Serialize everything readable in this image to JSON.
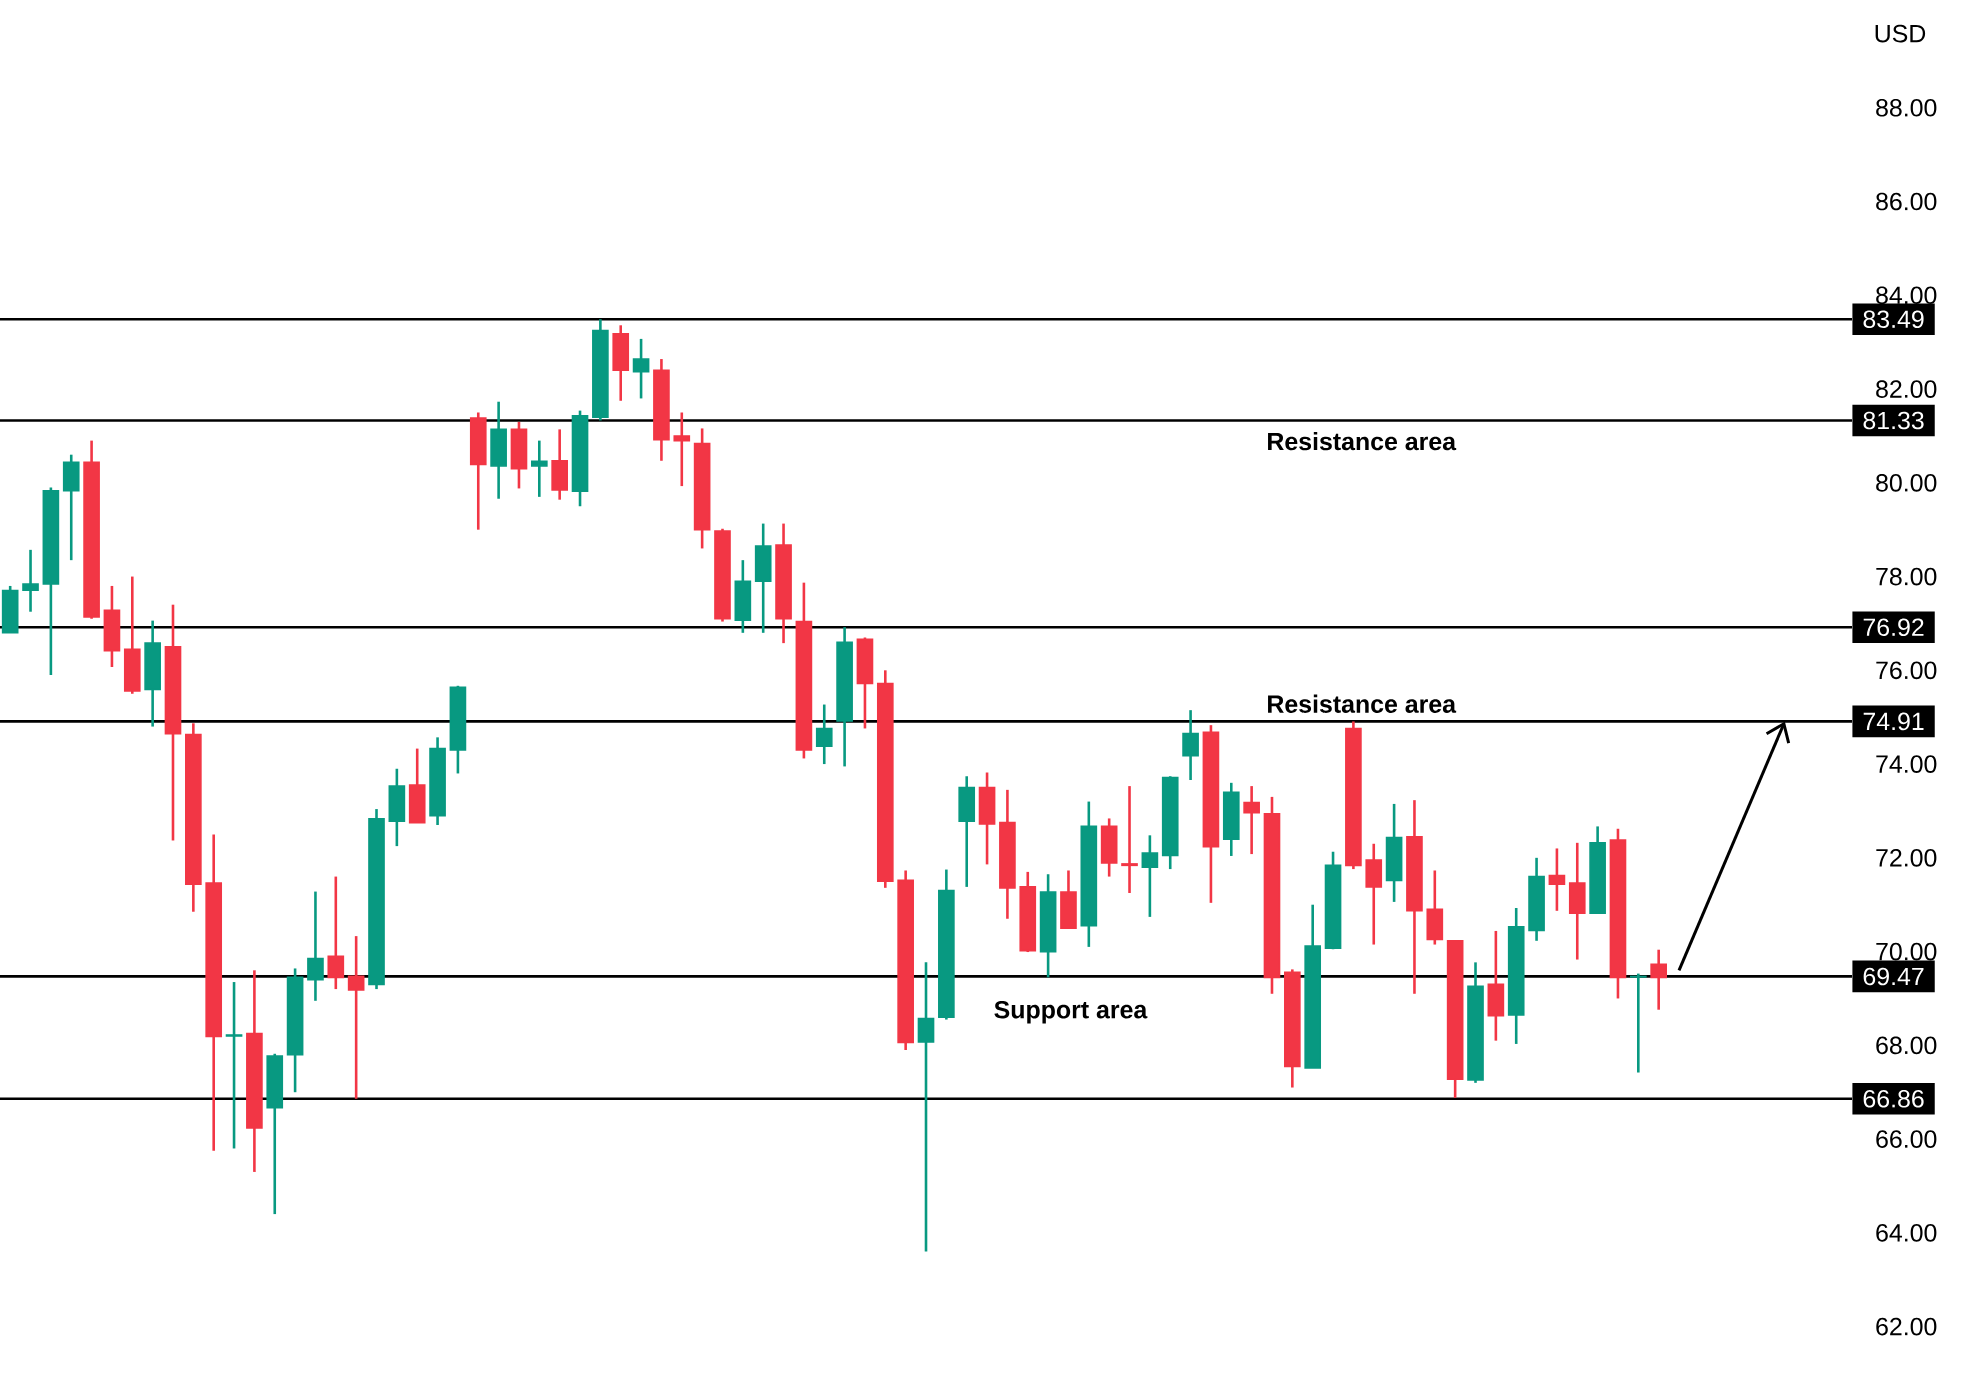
{
  "chart_data": {
    "type": "candlestick",
    "ylabel": "USD",
    "categories": [
      null,
      null,
      null,
      null,
      null,
      null,
      null,
      null,
      null,
      null,
      null,
      null,
      null,
      null,
      null,
      null,
      null,
      null,
      null,
      null,
      null,
      null,
      null,
      null,
      null,
      null,
      null,
      null,
      null,
      null,
      null,
      null,
      null,
      null,
      null,
      null,
      null,
      null,
      null,
      null,
      null,
      null,
      null,
      null,
      null,
      null,
      null,
      null,
      null,
      null,
      null,
      null,
      null,
      null,
      null,
      null,
      null,
      null,
      null,
      null,
      null,
      null,
      null,
      null,
      null,
      null,
      null,
      null,
      null,
      null,
      null,
      null,
      null,
      null,
      null,
      null,
      null,
      null,
      null,
      null,
      null,
      null,
      null,
      null,
      null,
      null,
      null,
      null,
      null,
      null,
      null
    ],
    "ohlc": [
      [
        76.8,
        77.8,
        76.8,
        77.7
      ],
      [
        77.71,
        78.57,
        77.25,
        77.84
      ],
      [
        77.84,
        79.9,
        75.9,
        79.83
      ],
      [
        79.83,
        80.6,
        78.35,
        80.44
      ],
      [
        80.44,
        80.9,
        77.1,
        77.14
      ],
      [
        77.28,
        77.8,
        76.07,
        76.42
      ],
      [
        76.45,
        78.0,
        75.5,
        75.56
      ],
      [
        75.59,
        77.06,
        74.8,
        76.58
      ],
      [
        76.5,
        77.4,
        72.37,
        74.65
      ],
      [
        74.63,
        74.87,
        70.85,
        71.44
      ],
      [
        71.46,
        72.5,
        65.75,
        68.19
      ],
      [
        68.2,
        69.35,
        65.8,
        68.22
      ],
      [
        68.25,
        69.6,
        65.3,
        66.24
      ],
      [
        66.67,
        67.82,
        64.4,
        67.77
      ],
      [
        67.8,
        69.64,
        67.0,
        69.45
      ],
      [
        69.4,
        71.28,
        68.95,
        69.85
      ],
      [
        69.9,
        71.6,
        69.2,
        69.45
      ],
      [
        69.47,
        70.33,
        66.86,
        69.18
      ],
      [
        69.3,
        73.04,
        69.2,
        72.83
      ],
      [
        72.78,
        73.9,
        72.25,
        73.53
      ],
      [
        73.55,
        74.33,
        72.75,
        72.75
      ],
      [
        72.9,
        74.57,
        72.7,
        74.33
      ],
      [
        74.3,
        75.67,
        73.8,
        75.64
      ],
      [
        81.38,
        81.5,
        79.0,
        80.39
      ],
      [
        80.36,
        81.73,
        79.66,
        81.14
      ],
      [
        81.14,
        81.3,
        79.88,
        80.3
      ],
      [
        80.36,
        80.9,
        79.7,
        80.46
      ],
      [
        80.47,
        81.14,
        79.64,
        79.85
      ],
      [
        79.82,
        81.54,
        79.5,
        81.43
      ],
      [
        81.4,
        83.49,
        81.33,
        83.25
      ],
      [
        83.18,
        83.36,
        81.75,
        82.4
      ],
      [
        82.37,
        83.07,
        81.8,
        82.64
      ],
      [
        82.4,
        82.64,
        80.47,
        80.92
      ],
      [
        81.0,
        81.5,
        79.93,
        80.9
      ],
      [
        80.84,
        81.16,
        78.6,
        79.0
      ],
      [
        78.97,
        79.02,
        77.04,
        77.1
      ],
      [
        77.07,
        78.35,
        76.8,
        77.9
      ],
      [
        77.9,
        79.13,
        76.8,
        78.65
      ],
      [
        78.67,
        79.13,
        76.58,
        77.1
      ],
      [
        77.04,
        77.87,
        74.12,
        74.3
      ],
      [
        74.38,
        75.27,
        74.0,
        74.76
      ],
      [
        74.92,
        76.92,
        73.95,
        76.6
      ],
      [
        76.66,
        76.7,
        74.76,
        75.72
      ],
      [
        75.72,
        76.0,
        71.36,
        71.5
      ],
      [
        71.52,
        71.73,
        67.9,
        68.06
      ],
      [
        68.07,
        69.77,
        63.6,
        68.57
      ],
      [
        68.6,
        71.75,
        68.55,
        71.3
      ],
      [
        72.78,
        73.74,
        71.38,
        73.5
      ],
      [
        73.5,
        73.82,
        71.86,
        72.72
      ],
      [
        72.75,
        73.45,
        70.7,
        71.36
      ],
      [
        71.38,
        71.7,
        69.99,
        70.02
      ],
      [
        70.0,
        71.65,
        69.45,
        71.27
      ],
      [
        71.27,
        71.73,
        70.5,
        70.5
      ],
      [
        70.55,
        73.2,
        70.1,
        72.67
      ],
      [
        72.67,
        72.84,
        71.6,
        71.89
      ],
      [
        71.87,
        73.53,
        71.25,
        71.84
      ],
      [
        71.8,
        72.48,
        70.74,
        72.1
      ],
      [
        72.05,
        73.74,
        71.76,
        73.71
      ],
      [
        74.18,
        75.15,
        73.66,
        74.65
      ],
      [
        74.68,
        74.83,
        71.04,
        72.24
      ],
      [
        72.4,
        73.6,
        72.04,
        73.4
      ],
      [
        73.18,
        73.53,
        72.08,
        72.96
      ],
      [
        72.94,
        73.3,
        69.1,
        69.45
      ],
      [
        69.56,
        69.62,
        67.1,
        67.55
      ],
      [
        67.52,
        71.0,
        67.52,
        70.12
      ],
      [
        70.07,
        72.13,
        70.05,
        71.84
      ],
      [
        74.76,
        74.91,
        71.76,
        71.84
      ],
      [
        71.95,
        72.3,
        70.15,
        71.38
      ],
      [
        71.52,
        73.15,
        71.06,
        72.43
      ],
      [
        72.45,
        73.23,
        69.1,
        70.87
      ],
      [
        70.9,
        71.73,
        70.15,
        70.26
      ],
      [
        70.23,
        70.23,
        66.88,
        67.28
      ],
      [
        67.26,
        69.77,
        67.2,
        69.26
      ],
      [
        69.3,
        70.44,
        68.1,
        68.63
      ],
      [
        68.65,
        70.93,
        68.03,
        70.53
      ],
      [
        70.45,
        72.0,
        70.23,
        71.6
      ],
      [
        71.62,
        72.2,
        70.87,
        71.44
      ],
      [
        71.46,
        72.32,
        69.83,
        70.82
      ],
      [
        70.82,
        72.67,
        70.82,
        72.32
      ],
      [
        72.38,
        72.62,
        69.0,
        69.45
      ],
      [
        69.46,
        69.53,
        67.42,
        69.47
      ],
      [
        69.73,
        70.04,
        68.76,
        69.45
      ],
      null,
      null,
      null,
      null,
      null,
      null,
      null,
      null,
      null
    ],
    "colors": [
      "#089981",
      "#089981",
      "#089981",
      "#089981",
      "#f23645",
      "#f23645",
      "#f23645",
      "#089981",
      "#f23645",
      "#f23645",
      "#f23645",
      "#089981",
      "#f23645",
      "#089981",
      "#089981",
      "#089981",
      "#f23645",
      "#f23645",
      "#089981",
      "#089981",
      "#f23645",
      "#089981",
      "#089981",
      "#f23645",
      "#089981",
      "#f23645",
      "#089981",
      "#f23645",
      "#089981",
      "#089981",
      "#f23645",
      "#089981",
      "#f23645",
      "#f23645",
      "#f23645",
      "#f23645",
      "#089981",
      "#089981",
      "#f23645",
      "#f23645",
      "#089981",
      "#089981",
      "#f23645",
      "#f23645",
      "#f23645",
      "#089981",
      "#089981",
      "#089981",
      "#f23645",
      "#f23645",
      "#f23645",
      "#089981",
      "#f23645",
      "#089981",
      "#f23645",
      "#f23645",
      "#089981",
      "#089981",
      "#089981",
      "#f23645",
      "#089981",
      "#f23645",
      "#f23645",
      "#f23645",
      "#089981",
      "#089981",
      "#f23645",
      "#f23645",
      "#089981",
      "#f23645",
      "#f23645",
      "#f23645",
      "#089981",
      "#f23645",
      "#089981",
      "#089981",
      "#f23645",
      "#f23645",
      "#089981",
      "#f23645",
      "#089981",
      "#f23645",
      null,
      null,
      null,
      null,
      null,
      null,
      null,
      null,
      null
    ],
    "ylim": [
      62,
      88
    ],
    "yticks": [
      {
        "value": 62,
        "label": "62.00"
      },
      {
        "value": 64,
        "label": "64.00"
      },
      {
        "value": 66,
        "label": "66.00"
      },
      {
        "value": 68,
        "label": "68.00"
      },
      {
        "value": 70,
        "label": "70.00"
      },
      {
        "value": 72,
        "label": "72.00"
      },
      {
        "value": 74,
        "label": "74.00"
      },
      {
        "value": 76,
        "label": "76.00"
      },
      {
        "value": 78,
        "label": "78.00"
      },
      {
        "value": 80,
        "label": "80.00"
      },
      {
        "value": 82,
        "label": "82.00"
      },
      {
        "value": 84,
        "label": "84.00"
      },
      {
        "value": 86,
        "label": "86.00"
      },
      {
        "value": 88,
        "label": "88.00"
      }
    ],
    "ref_lines": [
      {
        "axis": "y",
        "value": 83.49,
        "label": "83.49",
        "color": "#000000"
      },
      {
        "axis": "y",
        "value": 81.33,
        "label": "81.33",
        "color": "#000000"
      },
      {
        "axis": "y",
        "value": 76.92,
        "label": "76.92",
        "color": "#000000"
      },
      {
        "axis": "y",
        "value": 74.91,
        "label": "74.91",
        "color": "#000000"
      },
      {
        "axis": "y",
        "value": 69.47,
        "label": "69.47",
        "color": "#000000"
      },
      {
        "axis": "y",
        "value": 66.86,
        "label": "66.86",
        "color": "#000000"
      }
    ],
    "annotations": [
      "Resistance area",
      "Resistance area",
      "Support area"
    ]
  }
}
